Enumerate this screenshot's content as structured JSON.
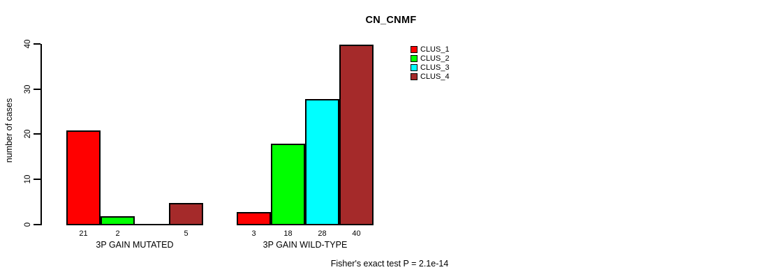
{
  "chart_data": {
    "type": "bar",
    "title": "CN_CNMF",
    "ylabel": "number of cases",
    "xlabel": "",
    "ylim": [
      0,
      40
    ],
    "yticks": [
      0,
      10,
      20,
      30,
      40
    ],
    "grid": false,
    "legend_position": "top-right-inside",
    "categories": [
      "3P GAIN MUTATED",
      "3P GAIN WILD-TYPE"
    ],
    "series": [
      {
        "name": "CLUS_1",
        "color": "#FF0000",
        "values": [
          21,
          3
        ]
      },
      {
        "name": "CLUS_2",
        "color": "#00FF00",
        "values": [
          2,
          18
        ]
      },
      {
        "name": "CLUS_3",
        "color": "#00FFFF",
        "values": [
          0,
          28
        ]
      },
      {
        "name": "CLUS_4",
        "color": "#A52A2A",
        "values": [
          5,
          40
        ]
      }
    ],
    "bar_value_labels": [
      [
        "21",
        "2",
        "",
        "5"
      ],
      [
        "3",
        "18",
        "28",
        "40"
      ]
    ],
    "annotation": "Fisher's exact test P = 2.1e-14",
    "colors": {
      "axis": "#000000",
      "text": "#000000",
      "background": "#FFFFFF"
    }
  }
}
